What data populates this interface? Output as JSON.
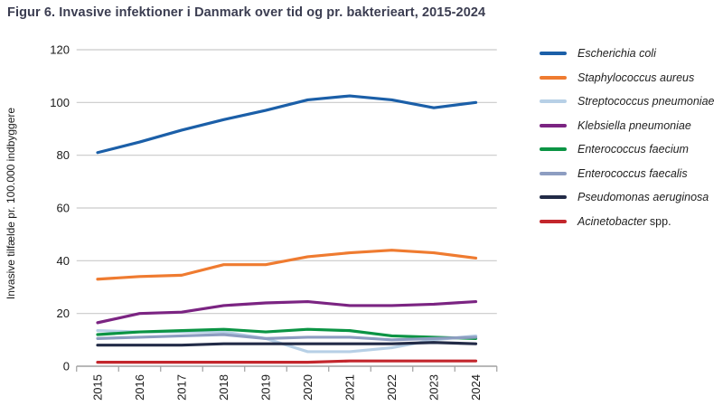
{
  "title": "Figur 6. Invasive infektioner i Danmark over tid og pr. bakterieart, 2015-2024",
  "ylabel": "Invasive tilfælde pr. 100.000 indbyggere",
  "colors": {
    "title_text": "#3b3d51",
    "tick_text": "#1a1a1a",
    "gridline": "#c9c9c9",
    "axis_line": "#a0a0a0",
    "background": "#ffffff"
  },
  "chart_data": {
    "type": "line",
    "title": "Figur 6. Invasive infektioner i Danmark over tid og pr. bakterieart, 2015-2024",
    "xlabel": "",
    "ylabel": "Invasive tilfælde pr. 100.000 indbyggere",
    "x": [
      2015,
      2016,
      2017,
      2018,
      2019,
      2020,
      2021,
      2022,
      2023,
      2024
    ],
    "ylim": [
      0,
      120
    ],
    "yticks": [
      0,
      20,
      40,
      60,
      80,
      100,
      120
    ],
    "grid": true,
    "legend_position": "right",
    "series": [
      {
        "name": "Escherichia coli",
        "suffix": "",
        "color": "#1b5fa8",
        "values": [
          81,
          85,
          89.5,
          93.5,
          97,
          101,
          102.5,
          101,
          98,
          100
        ]
      },
      {
        "name": "Staphylococcus aureus",
        "suffix": "",
        "color": "#ef7b30",
        "values": [
          33,
          34,
          34.5,
          38.5,
          38.5,
          41.5,
          43,
          44,
          43,
          41
        ]
      },
      {
        "name": "Streptococcus pneumoniae",
        "suffix": "",
        "color": "#b7d0e6",
        "values": [
          13.5,
          13,
          13,
          13,
          10.5,
          5.5,
          5.5,
          7,
          10,
          11.5
        ]
      },
      {
        "name": "Klebsiella pneumoniae",
        "suffix": "",
        "color": "#7b2482",
        "values": [
          16.5,
          20,
          20.5,
          23,
          24,
          24.5,
          23,
          23,
          23.5,
          24.5
        ]
      },
      {
        "name": "Enterococcus faecium",
        "suffix": "",
        "color": "#0b9444",
        "values": [
          12,
          13,
          13.5,
          14,
          13,
          14,
          13.5,
          11.5,
          11,
          10.5
        ]
      },
      {
        "name": "Enterococcus faecalis",
        "suffix": "",
        "color": "#8d9dc1",
        "values": [
          10.5,
          11,
          11.5,
          12,
          10.5,
          11,
          11,
          10,
          10.5,
          11
        ]
      },
      {
        "name": "Pseudomonas aeruginosa",
        "suffix": "",
        "color": "#222b47",
        "values": [
          8,
          8,
          8,
          8.5,
          8.5,
          8.5,
          8.5,
          8.5,
          9,
          8.5
        ]
      },
      {
        "name": "Acinetobacter",
        "suffix": " spp.",
        "color": "#c3262c",
        "values": [
          1.5,
          1.5,
          1.5,
          1.5,
          1.5,
          1.5,
          2,
          2,
          2,
          2
        ]
      }
    ]
  }
}
